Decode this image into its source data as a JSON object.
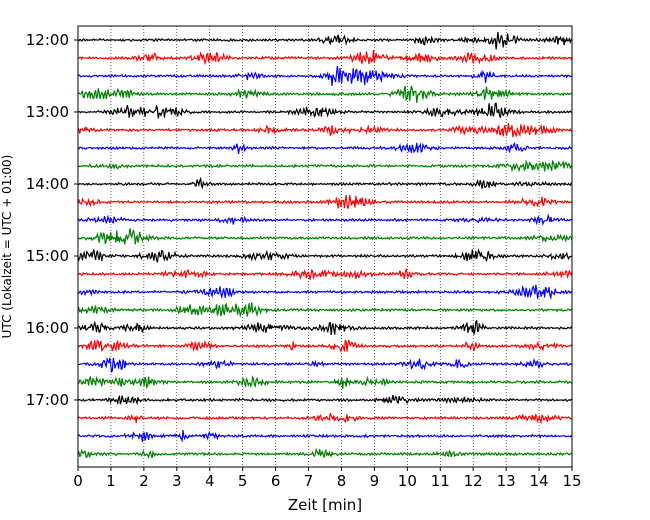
{
  "chart_data": {
    "type": "line",
    "xlabel": "Zeit  [min]",
    "ylabel": "UTC (Lokalzeit = UTC + 01:00)",
    "xlim": [
      0,
      15
    ],
    "x_ticks": [
      "0",
      "1",
      "2",
      "3",
      "4",
      "5",
      "6",
      "7",
      "8",
      "9",
      "10",
      "11",
      "12",
      "13",
      "14",
      "15"
    ],
    "y_ticks": [
      {
        "label": "12:00",
        "row": 0
      },
      {
        "label": "13:00",
        "row": 4
      },
      {
        "label": "14:00",
        "row": 8
      },
      {
        "label": "15:00",
        "row": 12
      },
      {
        "label": "16:00",
        "row": 16
      },
      {
        "label": "17:00",
        "row": 20
      }
    ],
    "trace_start_times": [
      "12:00",
      "12:15",
      "12:30",
      "12:45",
      "13:00",
      "13:15",
      "13:30",
      "13:45",
      "14:00",
      "14:15",
      "14:30",
      "14:45",
      "15:00",
      "15:15",
      "15:30",
      "15:45",
      "16:00",
      "16:15",
      "16:30",
      "16:45",
      "17:00",
      "17:15",
      "17:30",
      "17:45"
    ],
    "trace_colors": [
      "#000000",
      "#ff0000",
      "#0000ff",
      "#008000"
    ],
    "grid": {
      "x": true,
      "y": false,
      "style": "dotted"
    }
  }
}
